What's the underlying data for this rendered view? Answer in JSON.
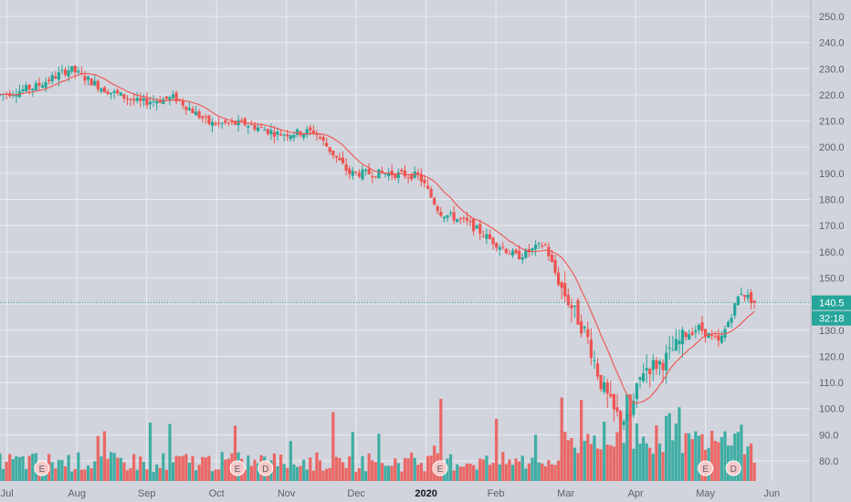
{
  "chart_data": {
    "type": "candlestick",
    "y_axis": {
      "ticks": [
        "250.0",
        "240.0",
        "230.0",
        "220.0",
        "210.0",
        "200.0",
        "190.0",
        "180.0",
        "170.0",
        "160.0",
        "150.0",
        "140.0",
        "130.0",
        "120.0",
        "110.0",
        "100.0",
        "90.0",
        "80.0"
      ],
      "range": [
        75,
        253
      ]
    },
    "x_axis": {
      "labels": [
        {
          "text": "Jul",
          "month_index": 0.1
        },
        {
          "text": "Aug",
          "month_index": 1.1
        },
        {
          "text": "Sep",
          "month_index": 2.1
        },
        {
          "text": "Oct",
          "month_index": 3.1
        },
        {
          "text": "Nov",
          "month_index": 4.1
        },
        {
          "text": "Dec",
          "month_index": 5.1
        },
        {
          "text": "2020",
          "month_index": 6.1,
          "bold": true
        },
        {
          "text": "Feb",
          "month_index": 7.1
        },
        {
          "text": "Mar",
          "month_index": 8.1
        },
        {
          "text": "Apr",
          "month_index": 9.1
        },
        {
          "text": "May",
          "month_index": 10.1
        },
        {
          "text": "Jun",
          "month_index": 11.05
        }
      ]
    },
    "price_path": [
      [
        0,
        220
      ],
      [
        0.5,
        223
      ],
      [
        1.0,
        230
      ],
      [
        1.5,
        222
      ],
      [
        2.0,
        217
      ],
      [
        2.5,
        219
      ],
      [
        3.0,
        209
      ],
      [
        3.5,
        209
      ],
      [
        4.0,
        205
      ],
      [
        4.5,
        206
      ],
      [
        5.0,
        190
      ],
      [
        5.5,
        190
      ],
      [
        6.0,
        189
      ],
      [
        6.3,
        175
      ],
      [
        6.7,
        171
      ],
      [
        7.0,
        165
      ],
      [
        7.4,
        158
      ],
      [
        7.8,
        163
      ],
      [
        8.0,
        148
      ],
      [
        8.2,
        138
      ],
      [
        8.4,
        128
      ],
      [
        8.6,
        110
      ],
      [
        8.8,
        98
      ],
      [
        9.0,
        95
      ],
      [
        9.2,
        115
      ],
      [
        9.5,
        118
      ],
      [
        9.8,
        128
      ],
      [
        10.0,
        131
      ],
      [
        10.3,
        125
      ],
      [
        10.5,
        138
      ],
      [
        10.6,
        145
      ],
      [
        10.8,
        140.5
      ]
    ],
    "moving_average": true,
    "volume": true,
    "current_price": {
      "value": 140.5,
      "label": "140.5",
      "countdown": "32:18"
    },
    "events": [
      {
        "text": "E",
        "month_index": 0.6
      },
      {
        "text": "E",
        "month_index": 3.4
      },
      {
        "text": "D",
        "month_index": 3.8
      },
      {
        "text": "E",
        "month_index": 6.3
      },
      {
        "text": "E",
        "month_index": 10.1
      },
      {
        "text": "D",
        "month_index": 10.5
      }
    ],
    "colors": {
      "up": "#26a69a",
      "down": "#ef5350",
      "ma": "#ef5350",
      "background": "#d1d4dc",
      "grid": "#e9ebf1",
      "axis_text": "#5d606b",
      "price_line": "#26a69a"
    },
    "grid": true
  }
}
